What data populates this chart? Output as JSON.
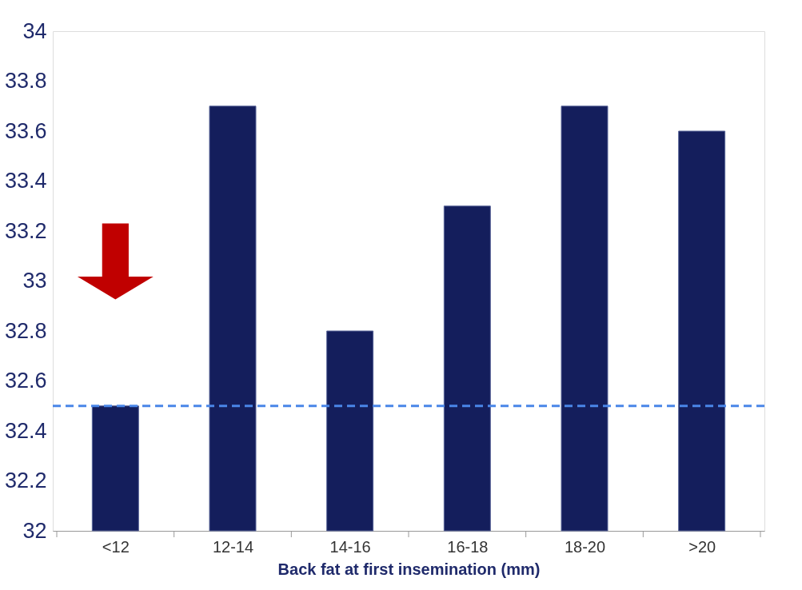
{
  "chart_data": {
    "type": "bar",
    "xlabel": "Back fat at first insemination (mm)",
    "categories": [
      "<12",
      "12-14",
      "14-16",
      "16-18",
      "18-20",
      ">20"
    ],
    "values": [
      32.5,
      33.7,
      32.8,
      33.3,
      33.7,
      33.6
    ],
    "color": "#141e5c",
    "ylim": [
      32,
      34
    ],
    "yticks": [
      32,
      32.2,
      32.4,
      32.6,
      32.8,
      33,
      33.2,
      33.4,
      33.6,
      33.8,
      34
    ],
    "grid": false,
    "ref_lines": [
      {
        "axis": "y",
        "value": 32.5,
        "color": "#4a86e8",
        "line_style": "dashed"
      }
    ]
  }
}
